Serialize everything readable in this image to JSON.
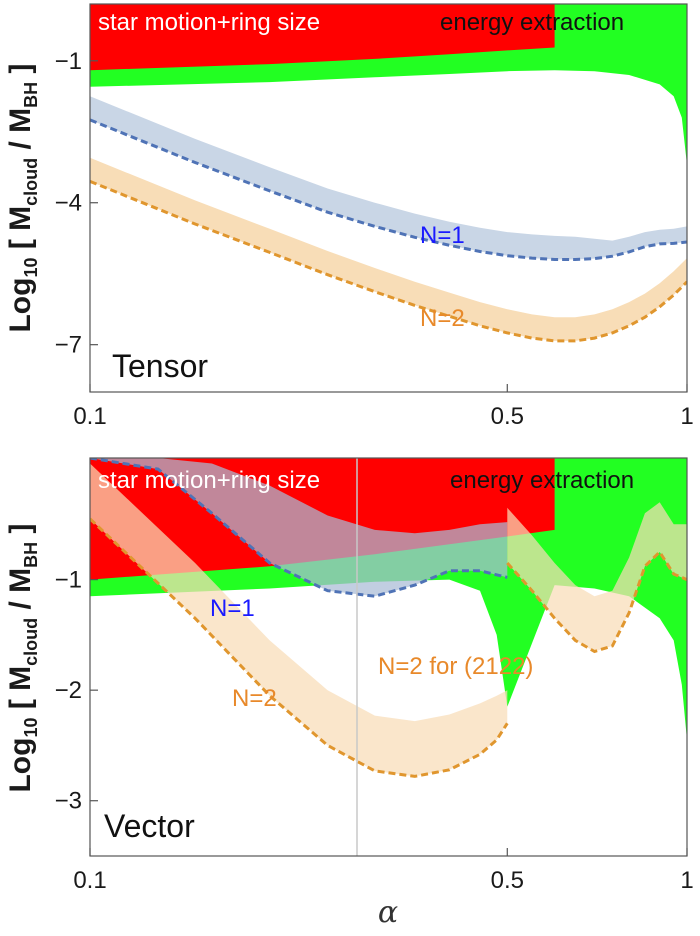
{
  "chart_data": [
    {
      "type": "area",
      "panel_label": "Tensor",
      "xlabel": "",
      "ylabel": "Log₁₀[M_cloud/M_BH]",
      "ylabel_parts": {
        "log": "Log",
        "log_sub": "10",
        "m1": "M",
        "m1_sub": "cloud",
        "m2": "M",
        "m2_sub": "BH"
      },
      "xlim": [
        0.1,
        1.0
      ],
      "ylim": [
        -8.0,
        0.2
      ],
      "xticks": [
        0.1,
        0.5,
        1.0
      ],
      "xtick_labels": [
        "0.1",
        "0.5",
        "1"
      ],
      "yticks": [
        -1,
        -4,
        -7
      ],
      "ytick_labels": [
        "−1",
        "−4",
        "−7"
      ],
      "regions": [
        {
          "name": "star motion+ring size",
          "color": "#ff0000",
          "x": [
            0.1,
            0.2,
            0.3,
            0.4,
            0.5,
            0.6
          ],
          "lower": [
            -1.2,
            -1.07,
            -0.96,
            -0.86,
            -0.78,
            -0.72
          ]
        },
        {
          "name": "energy extraction",
          "color": "#22ff22",
          "x": [
            0.1,
            0.2,
            0.3,
            0.4,
            0.5,
            0.6,
            0.7,
            0.8,
            0.9,
            0.95,
            0.98,
            1.0
          ],
          "lower": [
            -1.55,
            -1.45,
            -1.35,
            -1.28,
            -1.22,
            -1.2,
            -1.22,
            -1.3,
            -1.5,
            -1.75,
            -2.2,
            -3.2
          ]
        }
      ],
      "series": [
        {
          "name": "N=1",
          "color": "#4f73b6",
          "band_color": "#c9d6e6",
          "x": [
            0.1,
            0.15,
            0.2,
            0.25,
            0.3,
            0.35,
            0.4,
            0.45,
            0.5,
            0.55,
            0.6,
            0.65,
            0.7,
            0.75,
            0.8,
            0.85,
            0.9,
            0.95,
            1.0
          ],
          "lower": [
            -2.25,
            -3.15,
            -3.75,
            -4.2,
            -4.5,
            -4.73,
            -4.9,
            -5.03,
            -5.12,
            -5.17,
            -5.2,
            -5.2,
            -5.18,
            -5.13,
            -5.04,
            -4.93,
            -4.87,
            -4.86,
            -4.83
          ],
          "upper": [
            -1.75,
            -2.65,
            -3.25,
            -3.7,
            -4.0,
            -4.23,
            -4.4,
            -4.53,
            -4.62,
            -4.67,
            -4.7,
            -4.72,
            -4.76,
            -4.8,
            -4.72,
            -4.62,
            -4.57,
            -4.55,
            -4.5
          ]
        },
        {
          "name": "N=2",
          "color": "#e0962e",
          "band_color": "#f8ddb7",
          "x": [
            0.1,
            0.15,
            0.2,
            0.25,
            0.3,
            0.35,
            0.4,
            0.45,
            0.5,
            0.55,
            0.6,
            0.65,
            0.7,
            0.75,
            0.8,
            0.85,
            0.9,
            0.95,
            1.0
          ],
          "lower": [
            -3.55,
            -4.45,
            -5.05,
            -5.52,
            -5.88,
            -6.17,
            -6.4,
            -6.6,
            -6.75,
            -6.86,
            -6.92,
            -6.92,
            -6.86,
            -6.75,
            -6.6,
            -6.42,
            -6.2,
            -5.95,
            -5.67
          ],
          "upper": [
            -3.05,
            -3.95,
            -4.55,
            -5.02,
            -5.38,
            -5.67,
            -5.9,
            -6.1,
            -6.25,
            -6.36,
            -6.42,
            -6.42,
            -6.36,
            -6.25,
            -6.1,
            -5.92,
            -5.7,
            -5.45,
            -5.17
          ]
        }
      ],
      "annotations": [
        {
          "text": "N=1",
          "color": "#1a1aff"
        },
        {
          "text": "N=2",
          "color": "#e8892a"
        }
      ]
    },
    {
      "type": "area",
      "panel_label": "Vector",
      "xlabel": "α",
      "ylabel": "Log₁₀[M_cloud/M_BH]",
      "xlim": [
        0.1,
        1.0
      ],
      "ylim": [
        -3.5,
        0.1
      ],
      "xticks": [
        0.1,
        0.5,
        1.0
      ],
      "xtick_labels": [
        "0.1",
        "0.5",
        "1"
      ],
      "yticks": [
        -1,
        -2,
        -3
      ],
      "ytick_labels": [
        "−1",
        "−2",
        "−3"
      ],
      "regions": [
        {
          "name": "star motion+ring size",
          "color": "#ff0000",
          "x": [
            0.1,
            0.2,
            0.3,
            0.4,
            0.5,
            0.6
          ],
          "lower": [
            -1.0,
            -0.88,
            -0.77,
            -0.68,
            -0.61,
            -0.55
          ]
        },
        {
          "name": "energy extraction",
          "color": "#22ff22",
          "x": [
            0.1,
            0.2,
            0.3,
            0.4,
            0.45,
            0.48,
            0.5,
            0.6,
            0.7,
            0.8,
            0.9,
            0.95,
            0.98,
            1.0
          ],
          "lower": [
            -1.15,
            -1.08,
            -1.02,
            -1.0,
            -1.1,
            -1.5,
            -2.15,
            -1.05,
            -1.08,
            -1.15,
            -1.35,
            -1.55,
            -1.95,
            -2.45
          ]
        }
      ],
      "series": [
        {
          "name": "N=1",
          "color": "#4f73b6",
          "band_color": "#a9bbd6",
          "x": [
            0.1,
            0.13,
            0.16,
            0.2,
            0.25,
            0.3,
            0.35,
            0.4,
            0.45,
            0.5
          ],
          "lower": [
            0.1,
            0.0,
            -0.4,
            -0.85,
            -1.1,
            -1.15,
            -1.05,
            -0.92,
            -0.92,
            -0.98
          ],
          "upper": [
            0.1,
            0.1,
            0.05,
            -0.15,
            -0.42,
            -0.55,
            -0.58,
            -0.55,
            -0.5,
            -0.48
          ]
        },
        {
          "name": "N=2",
          "color": "#e0962e",
          "band_color": "#f8ddb7",
          "x": [
            0.1,
            0.15,
            0.2,
            0.25,
            0.3,
            0.35,
            0.4,
            0.45,
            0.48,
            0.5
          ],
          "lower": [
            -0.45,
            -1.35,
            -2.05,
            -2.5,
            -2.73,
            -2.78,
            -2.72,
            -2.58,
            -2.45,
            -2.3
          ],
          "upper": [
            0.05,
            -0.85,
            -1.55,
            -2.0,
            -2.23,
            -2.28,
            -2.22,
            -2.12,
            -2.05,
            -2.0
          ]
        },
        {
          "name": "N=2 for (2122)",
          "color": "#e0962e",
          "band_color": "#f8ddb7",
          "x": [
            0.5,
            0.55,
            0.6,
            0.65,
            0.7,
            0.75,
            0.8,
            0.85,
            0.9,
            0.95,
            1.0
          ],
          "lower": [
            -0.85,
            -1.1,
            -1.35,
            -1.55,
            -1.65,
            -1.6,
            -1.3,
            -0.88,
            -0.75,
            -0.95,
            -1.0
          ],
          "upper": [
            -0.35,
            -0.6,
            -0.85,
            -1.05,
            -1.15,
            -1.1,
            -0.8,
            -0.4,
            -0.3,
            -0.5,
            -0.5
          ]
        }
      ],
      "annotations": [
        {
          "text": "N=1",
          "color": "#1a1aff"
        },
        {
          "text": "N=2",
          "color": "#e8892a"
        },
        {
          "text": "N=2 for (2122)",
          "color": "#e8892a"
        }
      ]
    }
  ]
}
